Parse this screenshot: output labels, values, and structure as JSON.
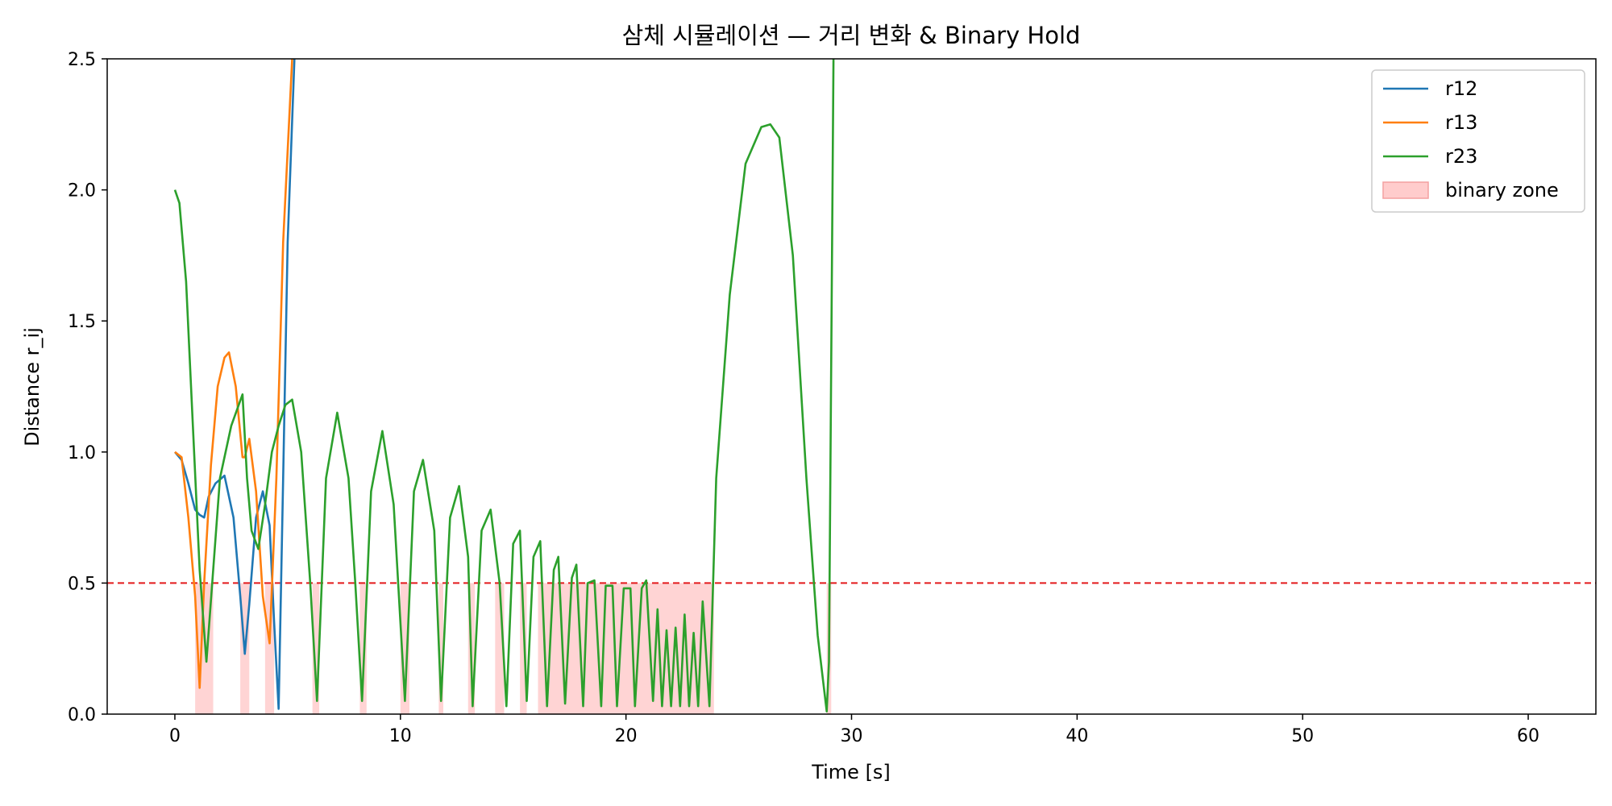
{
  "chart_data": {
    "type": "line",
    "title": "삼체 시뮬레이션 — 거리 변화 & Binary Hold",
    "xlabel": "Time [s]",
    "ylabel": "Distance r_ij",
    "xlim": [
      -3,
      63
    ],
    "ylim": [
      0,
      2.5
    ],
    "xticks": [
      0,
      10,
      20,
      30,
      40,
      50,
      60
    ],
    "yticks": [
      0.0,
      0.5,
      1.0,
      1.5,
      2.0,
      2.5
    ],
    "xtick_labels": [
      "0",
      "10",
      "20",
      "30",
      "40",
      "50",
      "60"
    ],
    "ytick_labels": [
      "0.0",
      "0.5",
      "1.0",
      "1.5",
      "2.0",
      "2.5"
    ],
    "grid": false,
    "legend_placement": "top-right",
    "threshold": {
      "y": 0.5,
      "color": "#e31a1c",
      "style": "dashed"
    },
    "series": [
      {
        "name": "r12",
        "color": "#1f77b4",
        "x": [
          0,
          0.3,
          0.6,
          0.9,
          1.1,
          1.3,
          1.5,
          1.8,
          2.2,
          2.6,
          2.9,
          3.1,
          3.3,
          3.6,
          3.9,
          4.2,
          4.4,
          4.6,
          4.8,
          5.0,
          5.3
        ],
        "y": [
          1.0,
          0.97,
          0.88,
          0.78,
          0.76,
          0.75,
          0.83,
          0.88,
          0.91,
          0.75,
          0.45,
          0.23,
          0.42,
          0.75,
          0.85,
          0.72,
          0.35,
          0.02,
          0.9,
          1.8,
          2.5
        ]
      },
      {
        "name": "r13",
        "color": "#ff7f0e",
        "x": [
          0,
          0.3,
          0.6,
          0.9,
          1.1,
          1.3,
          1.6,
          1.9,
          2.2,
          2.4,
          2.7,
          3.0,
          3.1,
          3.3,
          3.6,
          3.9,
          4.2,
          4.5,
          4.8,
          5.2
        ],
        "y": [
          1.0,
          0.98,
          0.75,
          0.45,
          0.1,
          0.5,
          0.95,
          1.25,
          1.36,
          1.38,
          1.25,
          0.98,
          0.98,
          1.05,
          0.85,
          0.45,
          0.27,
          0.9,
          1.8,
          2.5
        ]
      },
      {
        "name": "r23",
        "color": "#2ca02c",
        "x": [
          0,
          0.2,
          0.5,
          0.8,
          1.1,
          1.4,
          1.7,
          2.0,
          2.5,
          3.0,
          3.2,
          3.4,
          3.7,
          4.0,
          4.3,
          4.6,
          4.9,
          5.2,
          5.6,
          6.0,
          6.3,
          6.7,
          7.2,
          7.7,
          8.0,
          8.3,
          8.7,
          9.2,
          9.7,
          10.0,
          10.2,
          10.6,
          11.0,
          11.5,
          11.8,
          12.2,
          12.6,
          13.0,
          13.2,
          13.6,
          14.0,
          14.4,
          14.7,
          15.0,
          15.3,
          15.6,
          15.9,
          16.2,
          16.5,
          16.8,
          17.0,
          17.3,
          17.6,
          17.8,
          18.1,
          18.3,
          18.6,
          18.9,
          19.1,
          19.4,
          19.6,
          19.9,
          20.2,
          20.4,
          20.7,
          20.9,
          21.2,
          21.4,
          21.6,
          21.8,
          22.0,
          22.2,
          22.4,
          22.6,
          22.8,
          23.0,
          23.2,
          23.4,
          23.7,
          24.0,
          24.6,
          25.3,
          26.0,
          26.4,
          26.8,
          27.4,
          28.0,
          28.5,
          28.9,
          29.0,
          29.2
        ],
        "y": [
          2.0,
          1.95,
          1.65,
          1.1,
          0.55,
          0.2,
          0.55,
          0.9,
          1.1,
          1.22,
          0.9,
          0.7,
          0.63,
          0.8,
          1.0,
          1.1,
          1.18,
          1.2,
          1.0,
          0.5,
          0.05,
          0.9,
          1.15,
          0.9,
          0.5,
          0.05,
          0.85,
          1.08,
          0.8,
          0.35,
          0.05,
          0.85,
          0.97,
          0.7,
          0.05,
          0.75,
          0.87,
          0.6,
          0.03,
          0.7,
          0.78,
          0.5,
          0.03,
          0.65,
          0.7,
          0.05,
          0.6,
          0.66,
          0.03,
          0.55,
          0.6,
          0.04,
          0.52,
          0.57,
          0.03,
          0.5,
          0.51,
          0.03,
          0.49,
          0.49,
          0.03,
          0.48,
          0.48,
          0.03,
          0.48,
          0.51,
          0.05,
          0.4,
          0.03,
          0.32,
          0.03,
          0.33,
          0.03,
          0.38,
          0.03,
          0.31,
          0.03,
          0.43,
          0.03,
          0.9,
          1.6,
          2.1,
          2.24,
          2.25,
          2.2,
          1.75,
          0.9,
          0.3,
          0.01,
          0.2,
          2.5
        ]
      }
    ],
    "binary_zones": {
      "name": "binary zone",
      "color": "#ffcccc",
      "y_top": 0.5,
      "ranges": [
        [
          0.9,
          1.7
        ],
        [
          2.9,
          3.3
        ],
        [
          4.0,
          4.4
        ],
        [
          6.1,
          6.4
        ],
        [
          8.2,
          8.5
        ],
        [
          10.0,
          10.4
        ],
        [
          11.7,
          11.9
        ],
        [
          13.0,
          13.3
        ],
        [
          14.2,
          14.6
        ],
        [
          15.3,
          15.6
        ],
        [
          16.1,
          23.9
        ],
        [
          28.9,
          29.1
        ]
      ]
    }
  }
}
